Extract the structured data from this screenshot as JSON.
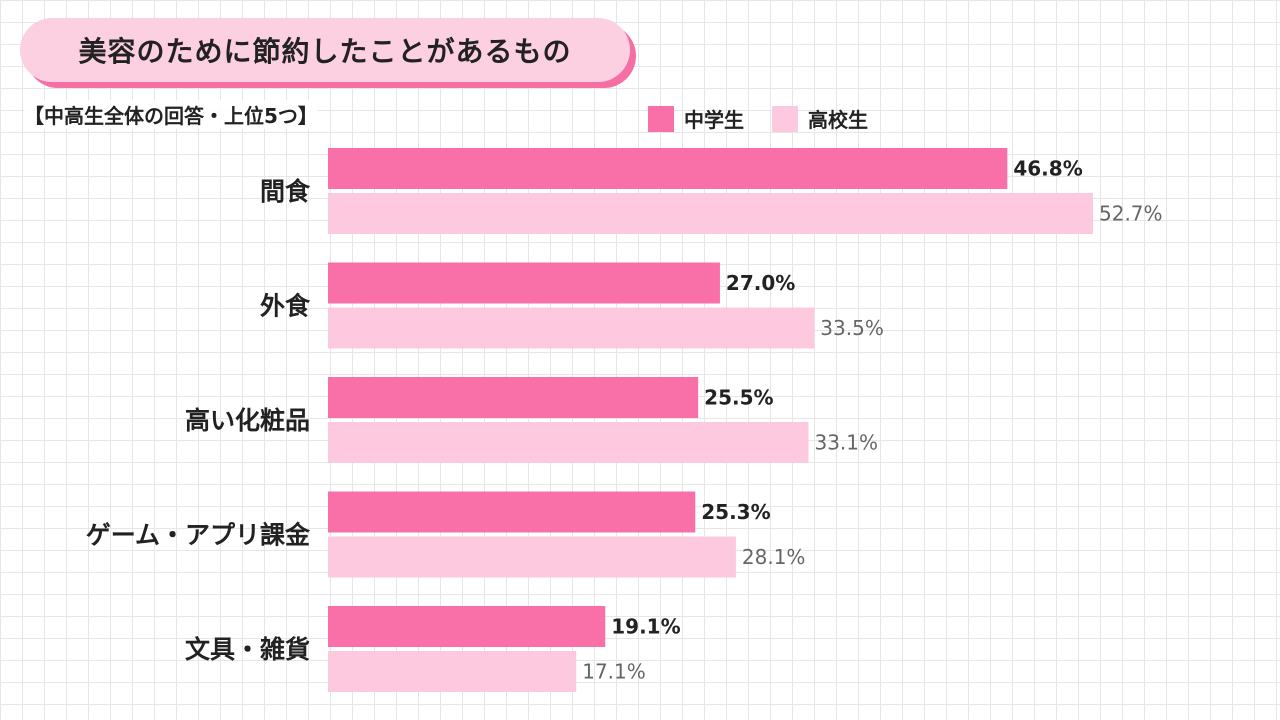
{
  "header": {
    "title": "美容のために節約したことがあるもの",
    "subtitle": "【中高生全体の回答・上位5つ】"
  },
  "colors": {
    "middle_school": "#f96fa7",
    "high_school": "#fdc9de",
    "title_pill": "#fcd0e1",
    "title_shadow": "#f56fa4"
  },
  "legend": {
    "items": [
      {
        "label": "中学生",
        "color": "#f96fa7"
      },
      {
        "label": "高校生",
        "color": "#fdc9de"
      }
    ]
  },
  "chart_data": {
    "type": "bar",
    "orientation": "horizontal",
    "categories": [
      "間食",
      "外食",
      "高い化粧品",
      "ゲーム・アプリ課金",
      "文具・雑貨"
    ],
    "series": [
      {
        "name": "中学生",
        "values": [
          46.8,
          27.0,
          25.5,
          25.3,
          19.1
        ],
        "color": "#f96fa7"
      },
      {
        "name": "高校生",
        "values": [
          52.7,
          33.5,
          33.1,
          28.1,
          17.1
        ],
        "color": "#fdc9de"
      }
    ],
    "value_format": "%",
    "title": "美容のために節約したことがあるもの",
    "subtitle": "【中高生全体の回答・上位5つ】",
    "xlim": [
      0,
      100
    ],
    "legend_position": "top-right",
    "grid": true
  }
}
